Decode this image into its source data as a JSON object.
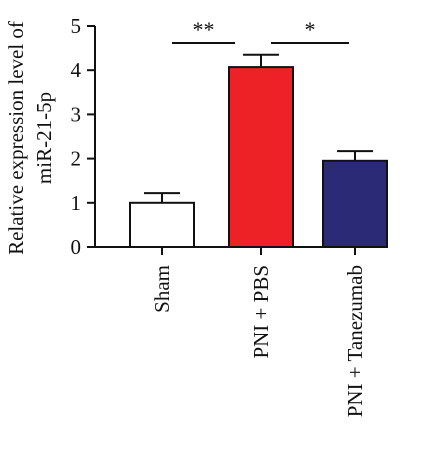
{
  "chart_data": {
    "type": "bar",
    "ylabel_lines": [
      "Relative expression level of",
      "miR-21-5p"
    ],
    "categories": [
      "Sham",
      "PNI + PBS",
      "PNI + Tanezumab"
    ],
    "values": [
      1.0,
      4.07,
      1.95
    ],
    "errors": [
      0.22,
      0.28,
      0.22
    ],
    "colors": [
      "#ffffff",
      "#ec2227",
      "#2b2a76"
    ],
    "ylim": [
      0,
      5
    ],
    "yticks": [
      0,
      1,
      2,
      3,
      4,
      5
    ],
    "significance": [
      {
        "from": 0,
        "to": 1,
        "label": "**"
      },
      {
        "from": 1,
        "to": 2,
        "label": "*"
      }
    ]
  }
}
